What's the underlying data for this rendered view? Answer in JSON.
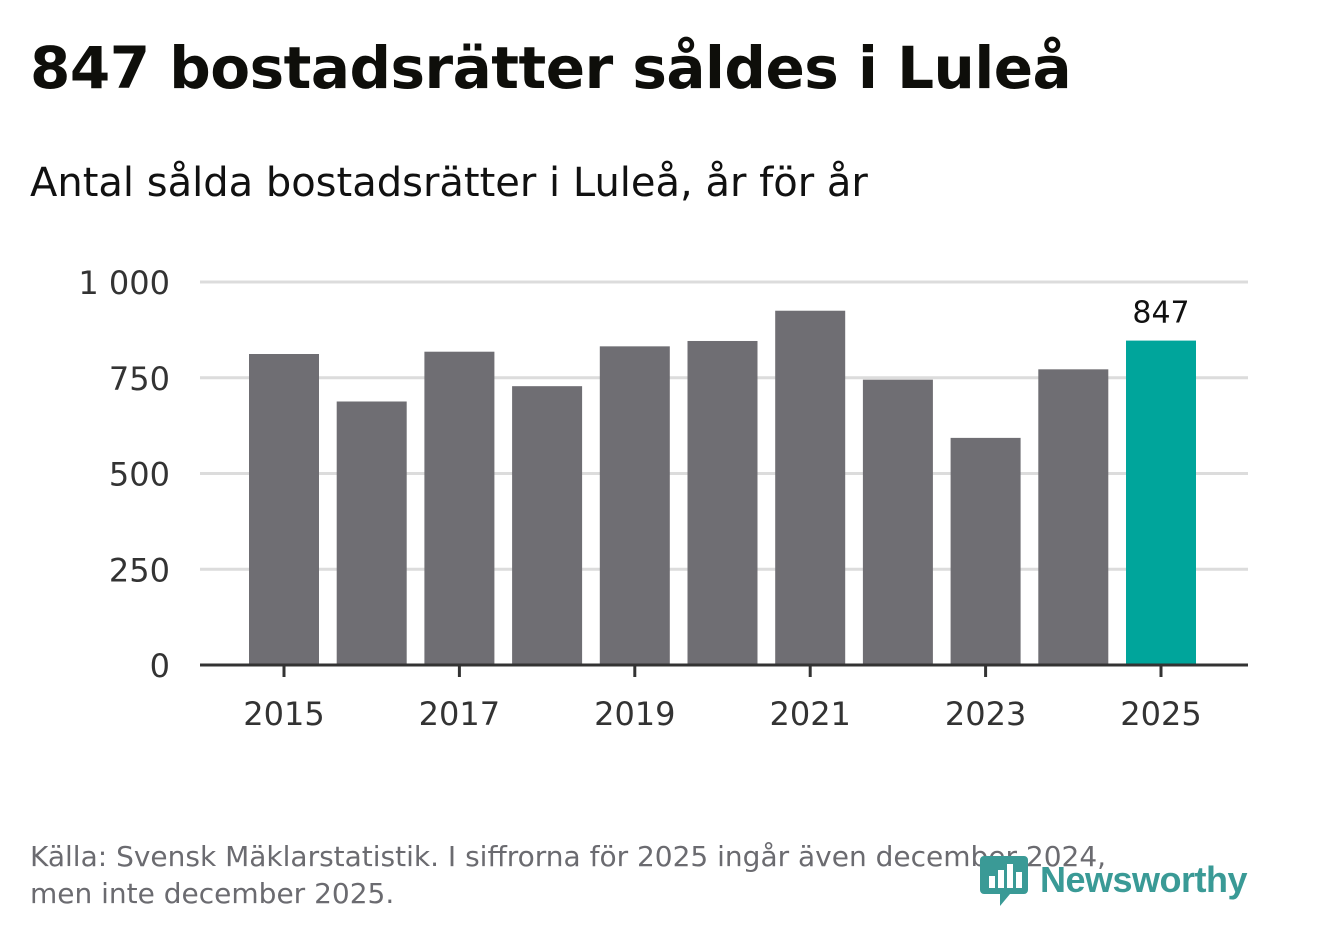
{
  "header": {
    "title": "847 bostadsrätter såldes i Luleå",
    "subtitle": "Antal sålda bostadsrätter i Luleå, år för år"
  },
  "footer": {
    "source_line1": "Källa: Svensk Mäklarstatistik. I siffrorna för 2025 ingår även december 2024,",
    "source_line2": "men inte december 2025.",
    "logo_text": "Newsworthy",
    "logo_icon": "newsworthy-chart-bubble-icon"
  },
  "colors": {
    "bar_default": "#6f6e73",
    "bar_highlight": "#00a59b",
    "grid": "#dcdcdc",
    "axis": "#333333",
    "brand": "#3a9a96"
  },
  "chart_data": {
    "type": "bar",
    "title": "847 bostadsrätter såldes i Luleå",
    "subtitle": "Antal sålda bostadsrätter i Luleå, år för år",
    "categories": [
      "2015",
      "2016",
      "2017",
      "2018",
      "2019",
      "2020",
      "2021",
      "2022",
      "2023",
      "2024",
      "2025"
    ],
    "values": [
      812,
      688,
      818,
      728,
      832,
      846,
      925,
      745,
      593,
      772,
      847
    ],
    "highlight_index": 10,
    "data_labels": [
      {
        "index": 10,
        "text": "847"
      }
    ],
    "x_tick_labels": [
      "2015",
      "2017",
      "2019",
      "2021",
      "2023",
      "2025"
    ],
    "y_ticks": [
      0,
      250,
      500,
      750,
      1000
    ],
    "y_tick_labels": [
      "0",
      "250",
      "500",
      "750",
      "1 000"
    ],
    "ylim": [
      0,
      1000
    ],
    "xlabel": "",
    "ylabel": "",
    "grid": true
  }
}
